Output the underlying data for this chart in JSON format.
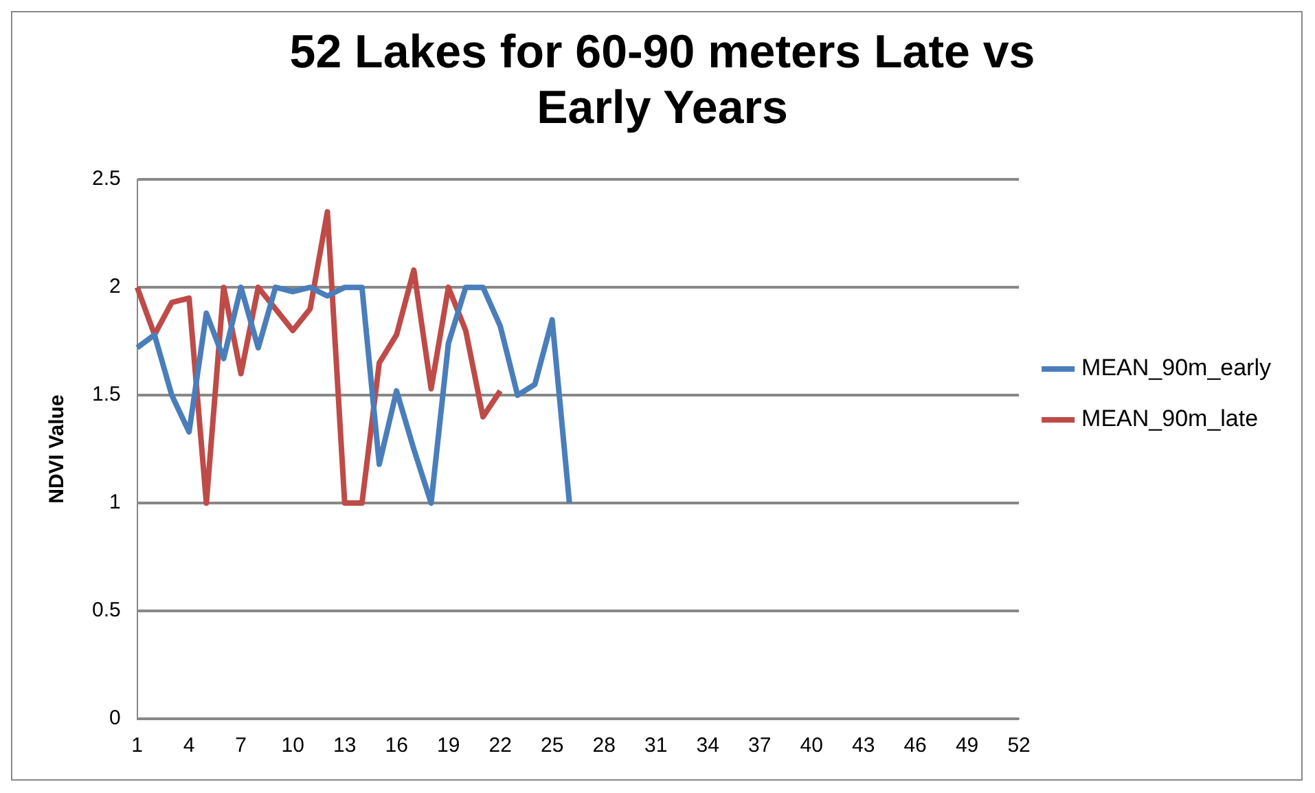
{
  "chart_data": {
    "type": "line",
    "title": [
      "52 Lakes for 60-90 meters Late vs",
      "Early Years"
    ],
    "ylabel": "NDVI Value",
    "categories": [
      "1",
      null,
      null,
      "4",
      null,
      null,
      "7",
      null,
      null,
      "10",
      null,
      null,
      "13",
      null,
      null,
      "16",
      null,
      null,
      "19",
      null,
      null,
      "22",
      null,
      null,
      "25",
      null,
      null,
      "28",
      null,
      null,
      "31",
      null,
      null,
      "34",
      null,
      null,
      "37",
      null,
      null,
      "40",
      null,
      null,
      "43",
      null,
      null,
      "46",
      null,
      null,
      "49",
      null,
      null,
      "52"
    ],
    "series": [
      {
        "name": "MEAN_90m_early",
        "color": "#4a7ebb",
        "values": [
          1.72,
          1.78,
          1.5,
          1.33,
          1.88,
          1.67,
          2.0,
          1.72,
          2.0,
          1.98,
          2.0,
          1.96,
          2.0,
          2.0,
          1.18,
          1.52,
          1.25,
          1.0,
          1.74,
          2.0,
          2.0,
          1.82,
          1.5,
          1.55,
          1.85,
          1.0,
          null,
          null,
          null,
          null,
          null,
          null,
          null,
          null,
          null,
          null,
          null,
          null,
          null,
          null,
          null,
          null,
          null,
          null,
          null,
          null,
          null,
          null,
          null,
          null,
          null,
          null
        ]
      },
      {
        "name": "MEAN_90m_late",
        "color": "#be4b48",
        "values": [
          2.0,
          1.78,
          1.93,
          1.95,
          1.0,
          2.0,
          1.6,
          2.0,
          1.9,
          1.8,
          1.9,
          2.35,
          1.0,
          1.0,
          1.65,
          1.78,
          2.08,
          1.53,
          2.0,
          1.8,
          1.4,
          1.52,
          null,
          null,
          null,
          null,
          null,
          null,
          null,
          null,
          null,
          null,
          null,
          null,
          null,
          null,
          null,
          null,
          null,
          null,
          null,
          null,
          null,
          null,
          null,
          null,
          null,
          null,
          null,
          null,
          null,
          null
        ]
      }
    ],
    "ylim": [
      0,
      2.5
    ],
    "yticks": [
      0,
      0.5,
      1,
      1.5,
      2,
      2.5
    ],
    "grid": "y",
    "legend": "right",
    "marker": "none",
    "line_style": "solid"
  }
}
